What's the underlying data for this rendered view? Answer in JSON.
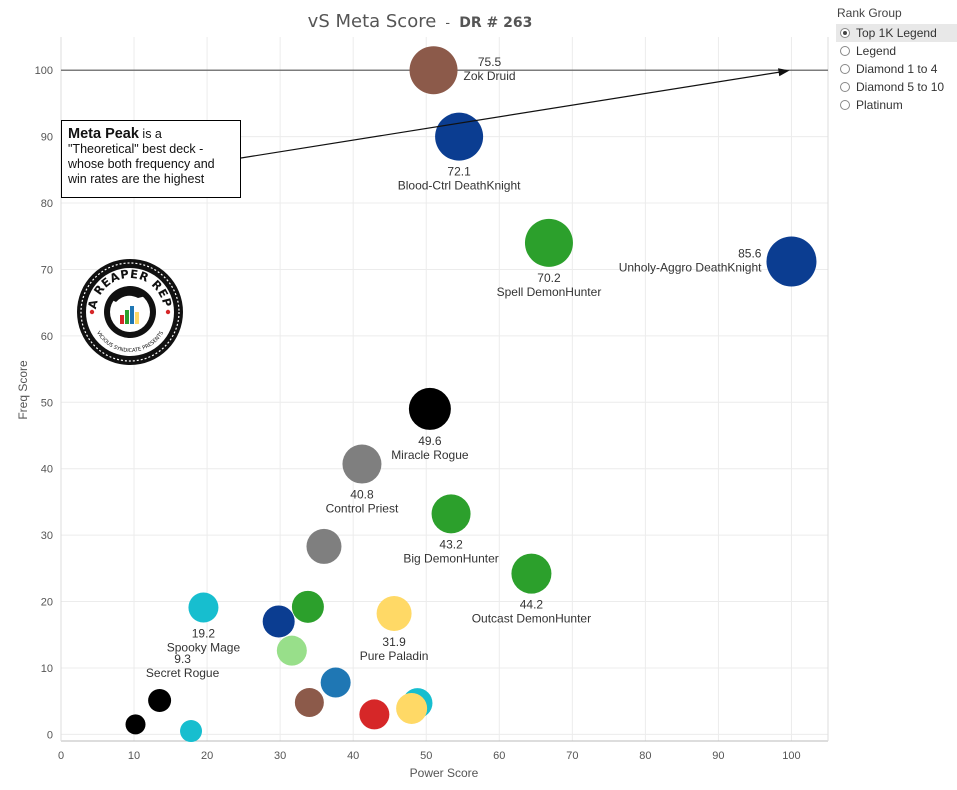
{
  "chart_data": {
    "type": "scatter",
    "title": "vS Meta Score",
    "subtitle": "DR # 263",
    "xlabel": "Power Score",
    "ylabel": "Freq Score",
    "xlim": [
      0,
      105
    ],
    "ylim": [
      -1,
      105
    ],
    "xticks": [
      0,
      10,
      20,
      30,
      40,
      50,
      60,
      70,
      80,
      90,
      100
    ],
    "yticks": [
      0,
      10,
      20,
      30,
      40,
      50,
      60,
      70,
      80,
      90,
      100
    ],
    "grid": true,
    "reference_line_y": 100,
    "points": [
      {
        "x": 51,
        "y": 100,
        "size": 24,
        "color": "#8c5a4a",
        "value_label": "75.5",
        "name_label": "Zok Druid"
      },
      {
        "x": 54.5,
        "y": 90,
        "size": 24,
        "color": "#0b3d91",
        "value_label": "72.1",
        "name_label": "Blood-Ctrl DeathKnight"
      },
      {
        "x": 66.8,
        "y": 74,
        "size": 24,
        "color": "#2ca02c",
        "value_label": "70.2",
        "name_label": "Spell DemonHunter"
      },
      {
        "x": 100,
        "y": 71.2,
        "size": 25,
        "color": "#0b3d91",
        "value_label": "85.6",
        "name_label": "Unholy-Aggro DeathKnight"
      },
      {
        "x": 50.5,
        "y": 49,
        "size": 21,
        "color": "#000000",
        "value_label": "49.6",
        "name_label": "Miracle Rogue"
      },
      {
        "x": 41.2,
        "y": 40.7,
        "size": 19.5,
        "color": "#7f7f7f",
        "value_label": "40.8",
        "name_label": "Control Priest"
      },
      {
        "x": 53.4,
        "y": 33.2,
        "size": 19.5,
        "color": "#2ca02c",
        "value_label": "43.2",
        "name_label": "Big DemonHunter"
      },
      {
        "x": 64.4,
        "y": 24.2,
        "size": 20,
        "color": "#2ca02c",
        "value_label": "44.2",
        "name_label": "Outcast DemonHunter"
      },
      {
        "x": 36,
        "y": 28.3,
        "size": 17.5,
        "color": "#7f7f7f",
        "value_label": "",
        "name_label": ""
      },
      {
        "x": 19.5,
        "y": 19.1,
        "size": 15,
        "color": "#17becf",
        "value_label": "19.2",
        "name_label": "Spooky Mage"
      },
      {
        "x": 33.8,
        "y": 19.2,
        "size": 16,
        "color": "#2ca02c",
        "value_label": "",
        "name_label": ""
      },
      {
        "x": 29.8,
        "y": 17,
        "size": 16,
        "color": "#0b3d91",
        "value_label": "",
        "name_label": ""
      },
      {
        "x": 45.6,
        "y": 18.2,
        "size": 17.5,
        "color": "#ffd966",
        "value_label": "31.9",
        "name_label": "Pure Paladin"
      },
      {
        "x": 31.6,
        "y": 12.6,
        "size": 15,
        "color": "#98df8a",
        "value_label": "",
        "name_label": ""
      },
      {
        "x": 13.5,
        "y": 5.1,
        "size": 11.5,
        "color": "#000000",
        "value_label": "9.3",
        "name_label": "Secret Rogue"
      },
      {
        "x": 37.6,
        "y": 7.8,
        "size": 15,
        "color": "#1f77b4",
        "value_label": "",
        "name_label": ""
      },
      {
        "x": 34,
        "y": 4.8,
        "size": 14.5,
        "color": "#8c5a4a",
        "value_label": "",
        "name_label": ""
      },
      {
        "x": 48.8,
        "y": 4.7,
        "size": 15,
        "color": "#17becf",
        "value_label": "",
        "name_label": ""
      },
      {
        "x": 48,
        "y": 3.9,
        "size": 15.5,
        "color": "#ffd966",
        "value_label": "",
        "name_label": ""
      },
      {
        "x": 42.9,
        "y": 3,
        "size": 15,
        "color": "#d62728",
        "value_label": "",
        "name_label": ""
      },
      {
        "x": 10.2,
        "y": 1.5,
        "size": 10,
        "color": "#000000",
        "value_label": "",
        "name_label": ""
      },
      {
        "x": 17.8,
        "y": 0.5,
        "size": 11,
        "color": "#17becf",
        "value_label": "",
        "name_label": ""
      }
    ]
  },
  "annotation": {
    "bold": "Meta Peak",
    "text": " is a \"Theoretical\" best deck - whose both frequency and win rates are the highest",
    "arrow_to": {
      "x": 100,
      "y": 100
    }
  },
  "legend": {
    "title": "Rank Group",
    "items": [
      {
        "label": "Top 1K Legend",
        "selected": true
      },
      {
        "label": "Legend",
        "selected": false
      },
      {
        "label": "Diamond 1 to 4",
        "selected": false
      },
      {
        "label": "Diamond 5 to 10",
        "selected": false
      },
      {
        "label": "Platinum",
        "selected": false
      }
    ]
  },
  "logo": {
    "top_text": "DATA REAPER REPORT",
    "bottom_text": "VICIOUS SYNDICATE PRESENTS"
  }
}
